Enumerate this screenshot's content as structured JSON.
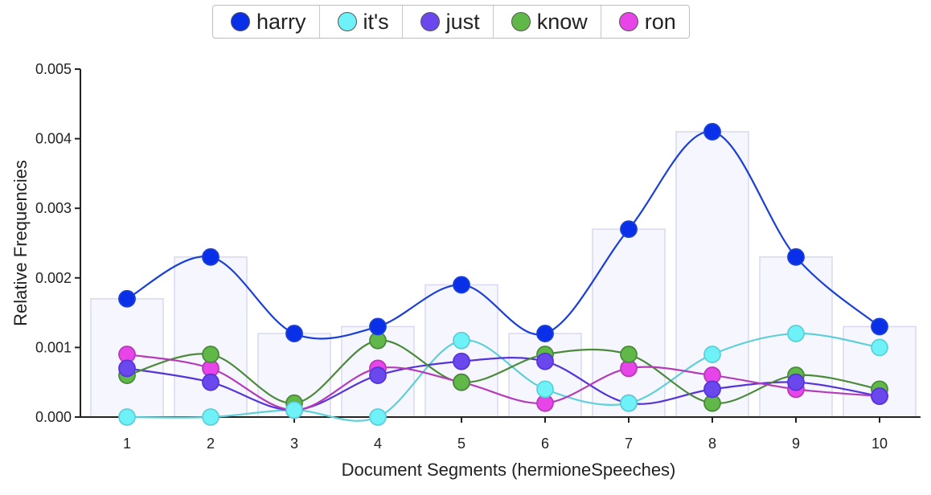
{
  "chart_data": {
    "type": "line",
    "xlabel": "Document Segments (hermioneSpeeches)",
    "ylabel": "Relative Frequencies",
    "x": [
      1,
      2,
      3,
      4,
      5,
      6,
      7,
      8,
      9,
      10
    ],
    "ylim": [
      0,
      0.005
    ],
    "yticks": [
      "0.000",
      "0.001",
      "0.002",
      "0.003",
      "0.004",
      "0.005"
    ],
    "legend_position": "top-center",
    "series": [
      {
        "name": "harry",
        "color": "#1a3fd6",
        "fill": "#0a2fe8",
        "values": [
          0.0017,
          0.0023,
          0.0012,
          0.0013,
          0.0019,
          0.0012,
          0.0027,
          0.0041,
          0.0023,
          0.0013
        ]
      },
      {
        "name": "it's",
        "color": "#5fcfd8",
        "fill": "#6ff2f7",
        "values": [
          0.0,
          0.0,
          0.0001,
          0.0,
          0.0011,
          0.0004,
          0.0002,
          0.0009,
          0.0012,
          0.001
        ]
      },
      {
        "name": "just",
        "color": "#5535d8",
        "fill": "#6a48ee",
        "values": [
          0.0007,
          0.0005,
          0.0001,
          0.0006,
          0.0008,
          0.0008,
          0.0002,
          0.0004,
          0.0005,
          0.0003
        ]
      },
      {
        "name": "know",
        "color": "#4a8a3a",
        "fill": "#60b848",
        "values": [
          0.0006,
          0.0009,
          0.0002,
          0.0011,
          0.0005,
          0.0009,
          0.0009,
          0.0002,
          0.0006,
          0.0004
        ]
      },
      {
        "name": "ron",
        "color": "#b43cb8",
        "fill": "#e845e8",
        "values": [
          0.0009,
          0.0007,
          0.0001,
          0.0007,
          0.0005,
          0.0002,
          0.0007,
          0.0006,
          0.0004,
          0.0003
        ]
      }
    ]
  }
}
